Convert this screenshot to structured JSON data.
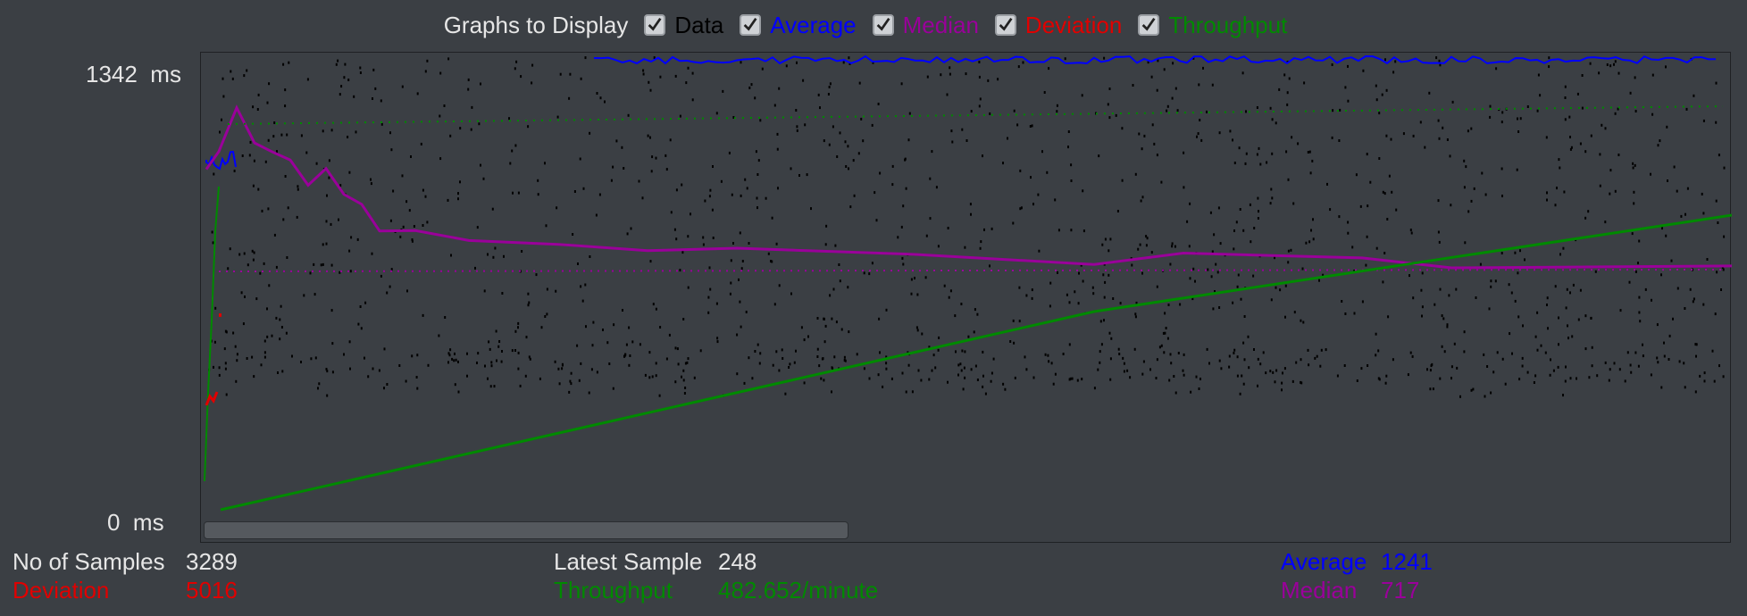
{
  "toolbar": {
    "title": "Graphs to Display",
    "options": [
      {
        "label": "Data",
        "checked": true,
        "color": "#000000"
      },
      {
        "label": "Average",
        "checked": true,
        "color": "#0000ff"
      },
      {
        "label": "Median",
        "checked": true,
        "color": "#9a009a"
      },
      {
        "label": "Deviation",
        "checked": true,
        "color": "#e00000"
      },
      {
        "label": "Throughput",
        "checked": true,
        "color": "#008a00"
      }
    ]
  },
  "axis": {
    "top_value": "1342",
    "top_unit": "ms",
    "bottom_value": "0",
    "bottom_unit": "ms"
  },
  "footer": {
    "samples_label": "No of Samples",
    "samples_value": "3289",
    "deviation_label": "Deviation",
    "deviation_value": "5016",
    "latest_label": "Latest Sample",
    "latest_value": "248",
    "throughput_label": "Throughput",
    "throughput_value": "482.652/minute",
    "average_label": "Average",
    "average_value": "1241",
    "median_label": "Median",
    "median_value": "717"
  },
  "chart_data": {
    "type": "scatter",
    "ylim": [
      0,
      1342
    ],
    "samples": 3289,
    "series": [
      {
        "name": "Data",
        "color": "#000000"
      },
      {
        "name": "Average",
        "color": "#0000ff",
        "final": 1241
      },
      {
        "name": "Median",
        "color": "#9a009a",
        "final": 717
      },
      {
        "name": "Deviation",
        "color": "#e00000",
        "final": 5016
      },
      {
        "name": "Throughput",
        "color": "#008a00",
        "final": "482.652/minute"
      }
    ]
  }
}
